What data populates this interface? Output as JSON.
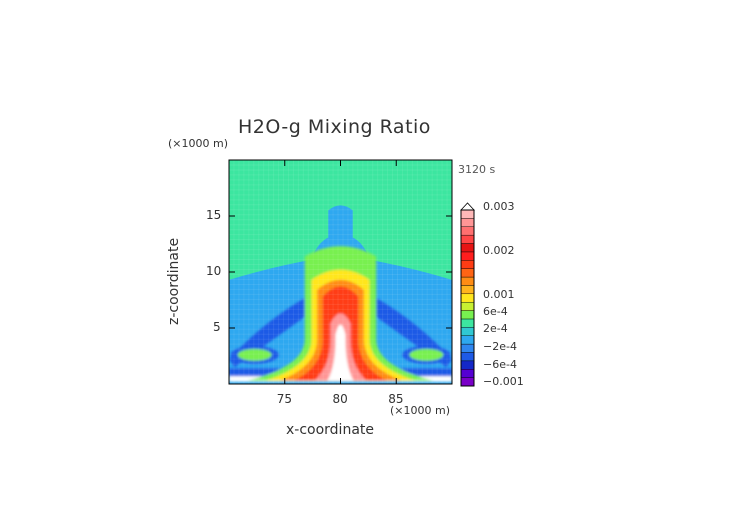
{
  "chart_data": {
    "type": "heatmap",
    "title": "H2O-g Mixing Ratio",
    "time_label": "3120 s",
    "xlabel": "x-coordinate",
    "ylabel": "z-coordinate",
    "x_unit": "(×1000 m)",
    "y_unit": "(×1000 m)",
    "xlim": [
      70,
      90
    ],
    "ylim": [
      0,
      20
    ],
    "x_ticks": [
      "75",
      "80",
      "85"
    ],
    "x_tick_values": [
      75,
      80,
      85
    ],
    "y_ticks": [
      "5",
      "10",
      "15"
    ],
    "y_tick_values": [
      5,
      10,
      15
    ],
    "colorbar": {
      "tick_labels": [
        "0.003",
        "0.002",
        "0.001",
        "6e-4",
        "2e-4",
        "−2e-4",
        "−6e-4",
        "−0.001"
      ],
      "colors": [
        "#7a00c8",
        "#5500d2",
        "#1428c8",
        "#1e5ae6",
        "#2f86f0",
        "#2ea8f0",
        "#30c8d2",
        "#3ce6a0",
        "#78f050",
        "#c8f032",
        "#ffe61e",
        "#ffb41e",
        "#ff8c14",
        "#ff6414",
        "#ff3c14",
        "#ff1e1e",
        "#e61414",
        "#ff4646",
        "#ff7070",
        "#ff9696",
        "#ffb8b8"
      ]
    },
    "colors": {
      "background": "#3ce6a0",
      "low": "#2ea8f0",
      "neg": "#1e5ae6",
      "plume": [
        "#78f050",
        "#ffe61e",
        "#ff8c14",
        "#ff3c14",
        "#ff9696",
        "#ffffff"
      ]
    }
  }
}
